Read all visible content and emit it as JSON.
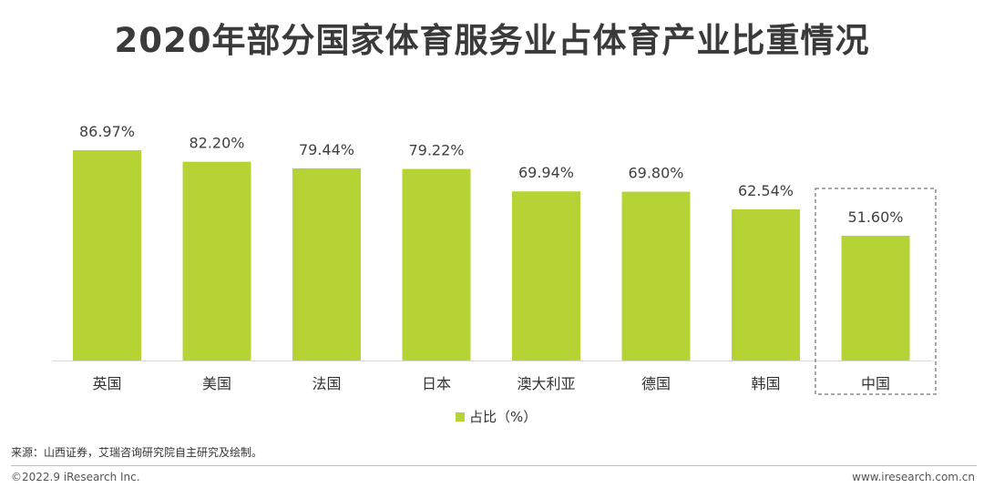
{
  "title": "2020年部分国家体育服务业占体育产业比重情况",
  "colors": {
    "bar": "#b5d334",
    "axis": "#d9d9d9",
    "highlight_border": "#8c8c8c"
  },
  "chart_data": {
    "type": "bar",
    "title": "2020年部分国家体育服务业占体育产业比重情况",
    "categories": [
      "英国",
      "美国",
      "法国",
      "日本",
      "澳大利亚",
      "德国",
      "韩国",
      "中国"
    ],
    "series": [
      {
        "name": "占比（%）",
        "values": [
          86.97,
          82.2,
          79.44,
          79.22,
          69.94,
          69.8,
          62.54,
          51.6
        ],
        "labels": [
          "86.97%",
          "82.20%",
          "79.44%",
          "79.22%",
          "69.94%",
          "69.80%",
          "62.54%",
          "51.60%"
        ]
      }
    ],
    "ylim": [
      0,
      100
    ],
    "grid": false,
    "legend": "bottom",
    "highlighted_category": "中国"
  },
  "footer": {
    "source": "来源：山西证券，艾瑞咨询研究院自主研究及绘制。",
    "copyright": "©2022.9 iResearch Inc.",
    "website": "www.iresearch.com.cn"
  }
}
